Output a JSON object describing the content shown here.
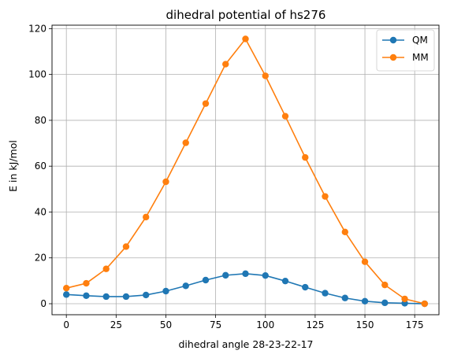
{
  "chart_data": {
    "type": "line",
    "title": "dihedral potential of hs276",
    "xlabel": "dihedral angle 28-23-22-17",
    "ylabel": "E in kJ/mol",
    "x": [
      0,
      10,
      20,
      30,
      40,
      50,
      60,
      70,
      80,
      90,
      100,
      110,
      120,
      130,
      140,
      150,
      160,
      170,
      180
    ],
    "xlim": [
      -7.2,
      187.2
    ],
    "ylim": [
      -4.8,
      121.5
    ],
    "xticks": [
      "0",
      "25",
      "50",
      "75",
      "100",
      "125",
      "150",
      "175"
    ],
    "yticks": [
      "0",
      "20",
      "40",
      "60",
      "80",
      "100",
      "120"
    ],
    "grid": true,
    "legend_position": "top-right",
    "series": [
      {
        "name": "QM",
        "color": "#1f77b4",
        "marker": "circle",
        "values": [
          4.0,
          3.5,
          3.1,
          3.1,
          3.8,
          5.5,
          7.8,
          10.3,
          12.4,
          13.1,
          12.3,
          9.9,
          7.2,
          4.6,
          2.5,
          1.1,
          0.4,
          0.2,
          0.0
        ]
      },
      {
        "name": "MM",
        "color": "#ff7f0e",
        "marker": "circle",
        "values": [
          6.8,
          8.9,
          15.2,
          24.9,
          37.8,
          53.2,
          70.2,
          87.3,
          104.5,
          115.5,
          99.4,
          81.8,
          63.8,
          46.8,
          31.3,
          18.3,
          8.2,
          2.1,
          0.0
        ]
      }
    ]
  }
}
